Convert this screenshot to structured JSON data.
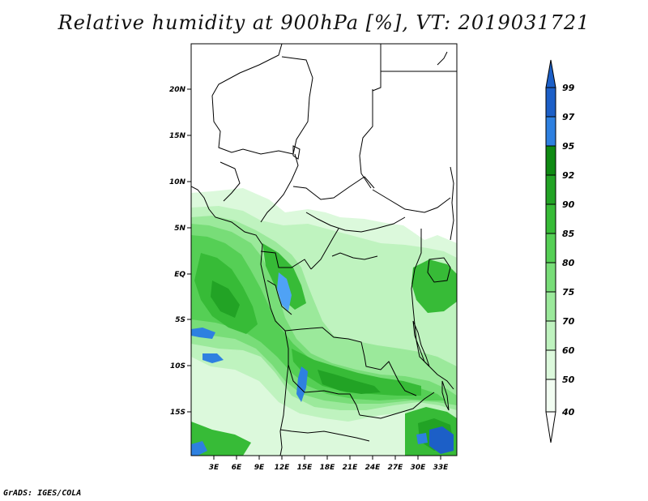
{
  "title": "Relative humidity at 900hPa [%], VT: 2019031721",
  "credit": "GrADS: IGES/COLA",
  "map": {
    "lat_labels": [
      "20N",
      "15N",
      "10N",
      "5N",
      "EQ",
      "5S",
      "10S",
      "15S"
    ],
    "lon_labels": [
      "3E",
      "6E",
      "9E",
      "12E",
      "15E",
      "18E",
      "21E",
      "24E",
      "27E",
      "30E",
      "33E"
    ]
  },
  "colorbar": {
    "levels": [
      "99",
      "97",
      "95",
      "92",
      "90",
      "85",
      "80",
      "75",
      "70",
      "60",
      "50",
      "40"
    ],
    "colors": [
      "#1c5fc7",
      "#2e80e0",
      "#4fa2f5",
      "#0f8a13",
      "#22a325",
      "#37bb37",
      "#55cf55",
      "#78dd78",
      "#9be99b",
      "#bff3bf",
      "#dcf9dc",
      "#f2fdf2",
      "#ffffff"
    ]
  }
}
